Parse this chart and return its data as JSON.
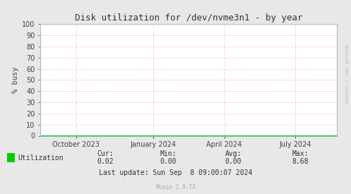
{
  "title": "Disk utilization for /dev/nvme3n1 - by year",
  "ylabel": "% busy",
  "background_color": "#e8e8e8",
  "plot_bg_color": "#ffffff",
  "grid_color": "#ff9999",
  "ylim": [
    0,
    100
  ],
  "yticks": [
    0,
    10,
    20,
    30,
    40,
    50,
    60,
    70,
    80,
    90,
    100
  ],
  "xtick_labels": [
    "October 2023",
    "January 2024",
    "April 2024",
    "July 2024"
  ],
  "xtick_positions": [
    0.12,
    0.38,
    0.62,
    0.86
  ],
  "line_color": "#00cc00",
  "line_y": 0.02,
  "legend_label": "Utilization",
  "legend_color": "#00cc00",
  "cur_label": "Cur:",
  "cur_value": "0.02",
  "min_label": "Min:",
  "min_value": "0.00",
  "avg_label": "Avg:",
  "avg_value": "0.00",
  "max_label": "Max:",
  "max_value": "8.68",
  "last_update": "Last update: Sun Sep  8 09:00:07 2024",
  "munin_version": "Munin 2.0.73",
  "watermark": "RRDTOOL / TOBI OETIKER",
  "title_fontsize": 9,
  "axis_label_fontsize": 7.5,
  "tick_fontsize": 7,
  "stats_fontsize": 7,
  "munin_fontsize": 5.5,
  "watermark_fontsize": 4.5
}
